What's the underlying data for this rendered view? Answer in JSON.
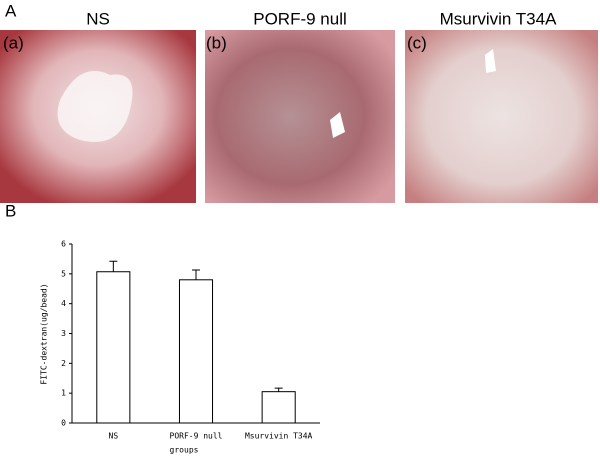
{
  "figure": {
    "panel_a_label": "A",
    "panel_b_label": "B"
  },
  "photos": [
    {
      "label": "(a)",
      "title": "NS"
    },
    {
      "label": "(b)",
      "title": "PORF-9 null"
    },
    {
      "label": "(c)",
      "title": "Msurvivin T34A"
    }
  ],
  "chart_data": {
    "type": "bar",
    "categories": [
      "NS",
      "PORF-9 null",
      "Msurvivin T34A"
    ],
    "values": [
      5.07,
      4.8,
      1.05
    ],
    "errors": [
      0.35,
      0.33,
      0.12
    ],
    "color": "#ffffff",
    "ylim": [
      0,
      6
    ],
    "yticks": [
      0,
      1,
      2,
      3,
      4,
      5,
      6
    ],
    "ylabel": "FITC-dextran(ug/bead)",
    "xlabel": "groups"
  }
}
